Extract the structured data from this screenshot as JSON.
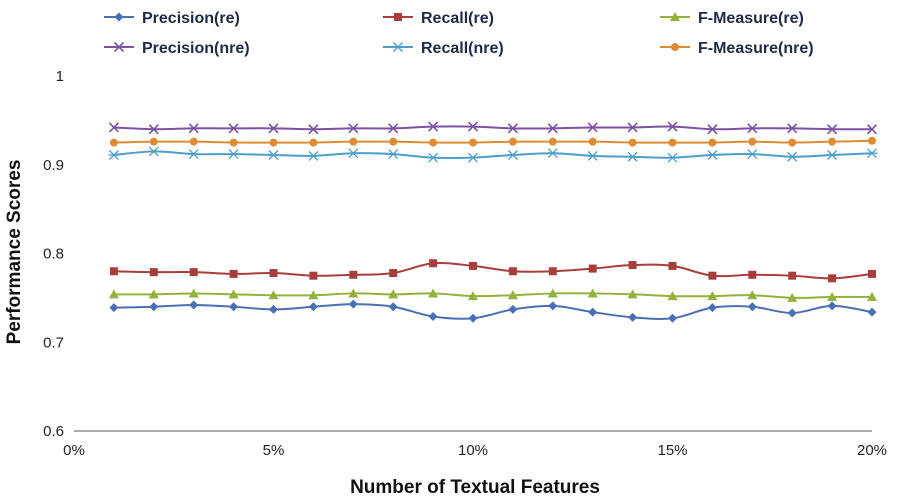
{
  "chart_data": {
    "type": "line",
    "xlabel": "Number of Textual Features",
    "ylabel": "Performance Scores",
    "xlim": [
      0,
      20
    ],
    "ylim": [
      0.6,
      1.0
    ],
    "x_ticks": [
      {
        "value": 0,
        "label": "0%"
      },
      {
        "value": 5,
        "label": "5%"
      },
      {
        "value": 10,
        "label": "10%"
      },
      {
        "value": 15,
        "label": "15%"
      },
      {
        "value": 20,
        "label": "20%"
      }
    ],
    "y_ticks": [
      {
        "value": 0.6,
        "label": "0.6"
      },
      {
        "value": 0.7,
        "label": "0.7"
      },
      {
        "value": 0.8,
        "label": "0.8"
      },
      {
        "value": 0.9,
        "label": "0.9"
      },
      {
        "value": 1.0,
        "label": "1"
      }
    ],
    "grid": false,
    "legend_position": "top",
    "x": [
      1,
      2,
      3,
      4,
      5,
      6,
      7,
      8,
      9,
      10,
      11,
      12,
      13,
      14,
      15,
      16,
      17,
      18,
      19,
      20
    ],
    "series": [
      {
        "name": "Precision(re)",
        "color": "#4a6fb5",
        "marker": "diamond",
        "values": [
          0.739,
          0.74,
          0.742,
          0.74,
          0.737,
          0.74,
          0.743,
          0.74,
          0.729,
          0.727,
          0.737,
          0.741,
          0.734,
          0.728,
          0.727,
          0.739,
          0.74,
          0.733,
          0.741,
          0.734
        ]
      },
      {
        "name": "Recall(re)",
        "color": "#a83e3c",
        "marker": "square",
        "values": [
          0.78,
          0.779,
          0.779,
          0.777,
          0.778,
          0.775,
          0.776,
          0.778,
          0.789,
          0.786,
          0.78,
          0.78,
          0.783,
          0.787,
          0.786,
          0.775,
          0.776,
          0.775,
          0.772,
          0.777
        ]
      },
      {
        "name": "F-Measure(re)",
        "color": "#93b23b",
        "marker": "triangle",
        "values": [
          0.754,
          0.754,
          0.755,
          0.754,
          0.753,
          0.753,
          0.755,
          0.754,
          0.755,
          0.752,
          0.753,
          0.755,
          0.755,
          0.754,
          0.752,
          0.752,
          0.753,
          0.75,
          0.751,
          0.751
        ]
      },
      {
        "name": "Precision(nre)",
        "color": "#7d52a3",
        "marker": "x",
        "values": [
          0.942,
          0.94,
          0.941,
          0.941,
          0.941,
          0.94,
          0.941,
          0.941,
          0.943,
          0.943,
          0.941,
          0.941,
          0.942,
          0.942,
          0.943,
          0.94,
          0.941,
          0.941,
          0.94,
          0.94
        ]
      },
      {
        "name": "Recall(nre)",
        "color": "#4b9fc9",
        "marker": "star",
        "values": [
          0.911,
          0.915,
          0.912,
          0.912,
          0.911,
          0.91,
          0.913,
          0.912,
          0.908,
          0.908,
          0.911,
          0.913,
          0.91,
          0.909,
          0.908,
          0.911,
          0.912,
          0.909,
          0.911,
          0.913
        ]
      },
      {
        "name": "F-Measure(nre)",
        "color": "#de8c34",
        "marker": "circle",
        "values": [
          0.925,
          0.926,
          0.926,
          0.925,
          0.925,
          0.925,
          0.926,
          0.926,
          0.925,
          0.925,
          0.926,
          0.926,
          0.926,
          0.925,
          0.925,
          0.925,
          0.926,
          0.925,
          0.926,
          0.927
        ]
      }
    ]
  }
}
